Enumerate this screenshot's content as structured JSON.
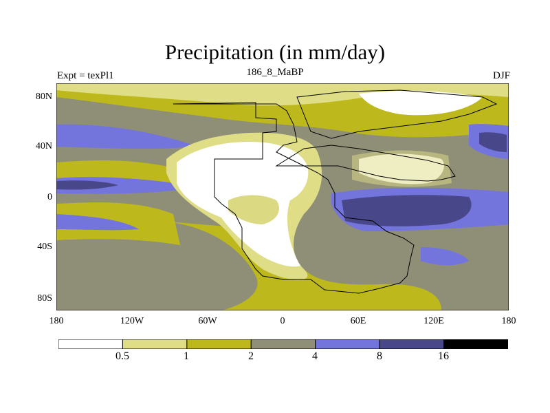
{
  "title": "Precipitation (in mm/day)",
  "subtitle_left": "Expt = texPl1",
  "subtitle_center": "186_8_MaBP",
  "subtitle_right": "DJF",
  "y_ticks": [
    "80N",
    "40N",
    "0",
    "40S",
    "80S"
  ],
  "x_ticks": [
    "180",
    "120W",
    "60W",
    "0",
    "60E",
    "120E",
    "180"
  ],
  "legend": {
    "labels": [
      "0.5",
      "1",
      "2",
      "4",
      "8",
      "16"
    ],
    "colors": [
      "#ffffff",
      "#e0dd87",
      "#bdb91c",
      "#8f8f78",
      "#7474dd",
      "#47478a",
      "#000000"
    ]
  },
  "palette": {
    "white": "#ffffff",
    "light_yellow": "#e0dd87",
    "olive": "#bdb91c",
    "gray": "#8f8f78",
    "blue": "#7474dd",
    "dark_blue": "#47478a"
  }
}
